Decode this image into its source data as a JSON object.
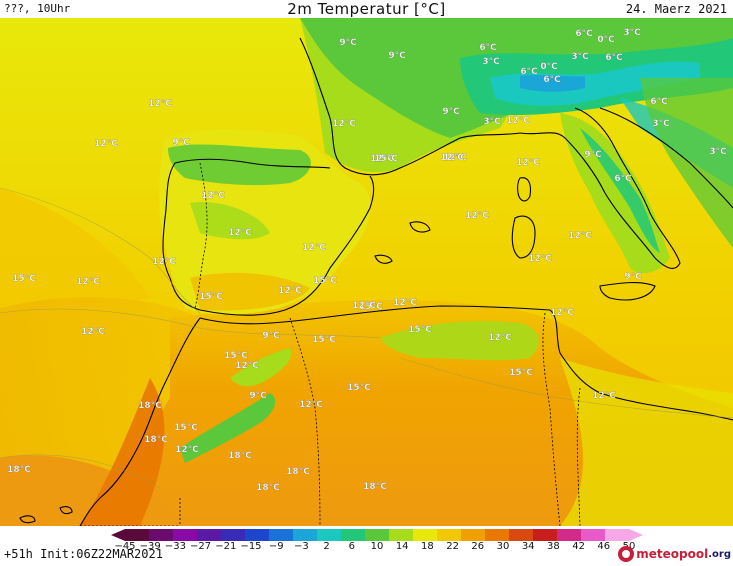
{
  "header": {
    "left": "???, 10Uhr",
    "title": "2m Temperatur [°C]",
    "date": "24. Maerz 2021"
  },
  "footer": {
    "run": "+51h Init:06Z22MAR2021",
    "logo_text": "meteopool",
    "logo_tld": ".org"
  },
  "colorbar": {
    "ticks": [
      "−45",
      "−39",
      "−33",
      "−27",
      "−21",
      "−15",
      "−9",
      "−3",
      "2",
      "6",
      "10",
      "14",
      "18",
      "22",
      "26",
      "30",
      "34",
      "38",
      "42",
      "46",
      "50"
    ],
    "colors": [
      "#5a0a3a",
      "#6b0b6f",
      "#8a0aa8",
      "#5a1aa6",
      "#3a2ab8",
      "#1e46cc",
      "#1a72d8",
      "#1aa6d6",
      "#1ac8c0",
      "#22c878",
      "#5ac83a",
      "#a6dc1a",
      "#e8e80a",
      "#f2c800",
      "#f0a000",
      "#e87800",
      "#d84a10",
      "#c81e1e",
      "#d22a8a",
      "#e85ac8",
      "#f8a8e8"
    ]
  },
  "labels": [
    {
      "text": "9°C"
    },
    {
      "text": "9°C"
    },
    {
      "text": "6°C"
    },
    {
      "text": "6°C"
    },
    {
      "text": "0°C"
    },
    {
      "text": "3°C"
    },
    {
      "text": "3°C"
    },
    {
      "text": "6°C"
    },
    {
      "text": "0°C"
    },
    {
      "text": "3°C"
    },
    {
      "text": "6°C"
    },
    {
      "text": "6°C"
    },
    {
      "text": "12°C"
    },
    {
      "text": "12°C"
    },
    {
      "text": "9°C"
    },
    {
      "text": "12°C"
    },
    {
      "text": "9°C"
    },
    {
      "text": "3°C"
    },
    {
      "text": "12°C"
    },
    {
      "text": "6°C"
    },
    {
      "text": "3°C"
    },
    {
      "text": "9°C"
    },
    {
      "text": "12°C"
    },
    {
      "text": "12°C"
    },
    {
      "text": "12°C"
    },
    {
      "text": "3°C"
    },
    {
      "text": "6°C"
    },
    {
      "text": "15°C"
    },
    {
      "text": "12°C"
    },
    {
      "text": "12°C"
    },
    {
      "text": "12°C"
    },
    {
      "text": "12°C"
    },
    {
      "text": "12°C"
    },
    {
      "text": "12°C"
    },
    {
      "text": "12°C"
    },
    {
      "text": "15°C"
    },
    {
      "text": "12°C"
    },
    {
      "text": "15°C"
    },
    {
      "text": "15°C"
    },
    {
      "text": "12°C"
    },
    {
      "text": "9°C"
    },
    {
      "text": "12°C"
    },
    {
      "text": "15°C"
    },
    {
      "text": "12°C"
    },
    {
      "text": "12°C"
    },
    {
      "text": "9°C"
    },
    {
      "text": "12°C"
    },
    {
      "text": "15°C"
    },
    {
      "text": "15°C"
    },
    {
      "text": "12°C"
    },
    {
      "text": "15°C"
    },
    {
      "text": "15°C"
    },
    {
      "text": "18°C"
    },
    {
      "text": "9°C"
    },
    {
      "text": "12°C"
    },
    {
      "text": "15°C"
    },
    {
      "text": "18°C"
    },
    {
      "text": "15°C"
    },
    {
      "text": "12°C"
    },
    {
      "text": "18°C"
    },
    {
      "text": "18°C"
    },
    {
      "text": "18°C"
    },
    {
      "text": "18°C"
    },
    {
      "text": "18°C"
    },
    {
      "text": "12°C"
    },
    {
      "text": "12°C"
    },
    {
      "text": "12°C"
    }
  ]
}
